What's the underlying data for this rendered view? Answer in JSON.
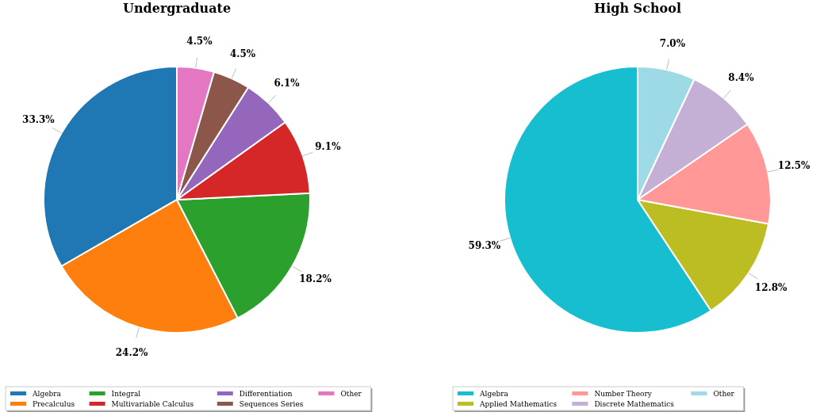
{
  "chart_data": [
    {
      "type": "pie",
      "title": "Undergraduate",
      "categories": [
        "Algebra",
        "Precalculus",
        "Integral",
        "Multivariable Calculus",
        "Differentiation",
        "Sequences Series",
        "Other"
      ],
      "values": [
        33.3,
        24.2,
        18.2,
        9.1,
        6.1,
        4.5,
        4.5
      ],
      "colors": [
        "#1f77b4",
        "#ff7f0e",
        "#2ca02c",
        "#d62728",
        "#9467bd",
        "#8c564b",
        "#e377c2"
      ],
      "value_labels": [
        "33.3%",
        "24.2%",
        "18.2%",
        "9.1%",
        "6.1%",
        "4.5%",
        "4.5%"
      ],
      "legend": "bottom"
    },
    {
      "type": "pie",
      "title": "High School",
      "categories": [
        "Algebra",
        "Applied Mathematics",
        "Number Theory",
        "Discrete Mathematics",
        "Other"
      ],
      "values": [
        59.3,
        12.8,
        12.5,
        8.4,
        7.0
      ],
      "colors": [
        "#17becf",
        "#bcbd22",
        "#ff9896",
        "#c5b0d5",
        "#9edae5"
      ],
      "value_labels": [
        "59.3%",
        "12.8%",
        "12.5%",
        "8.4%",
        "7.0%"
      ],
      "legend": "bottom"
    }
  ]
}
